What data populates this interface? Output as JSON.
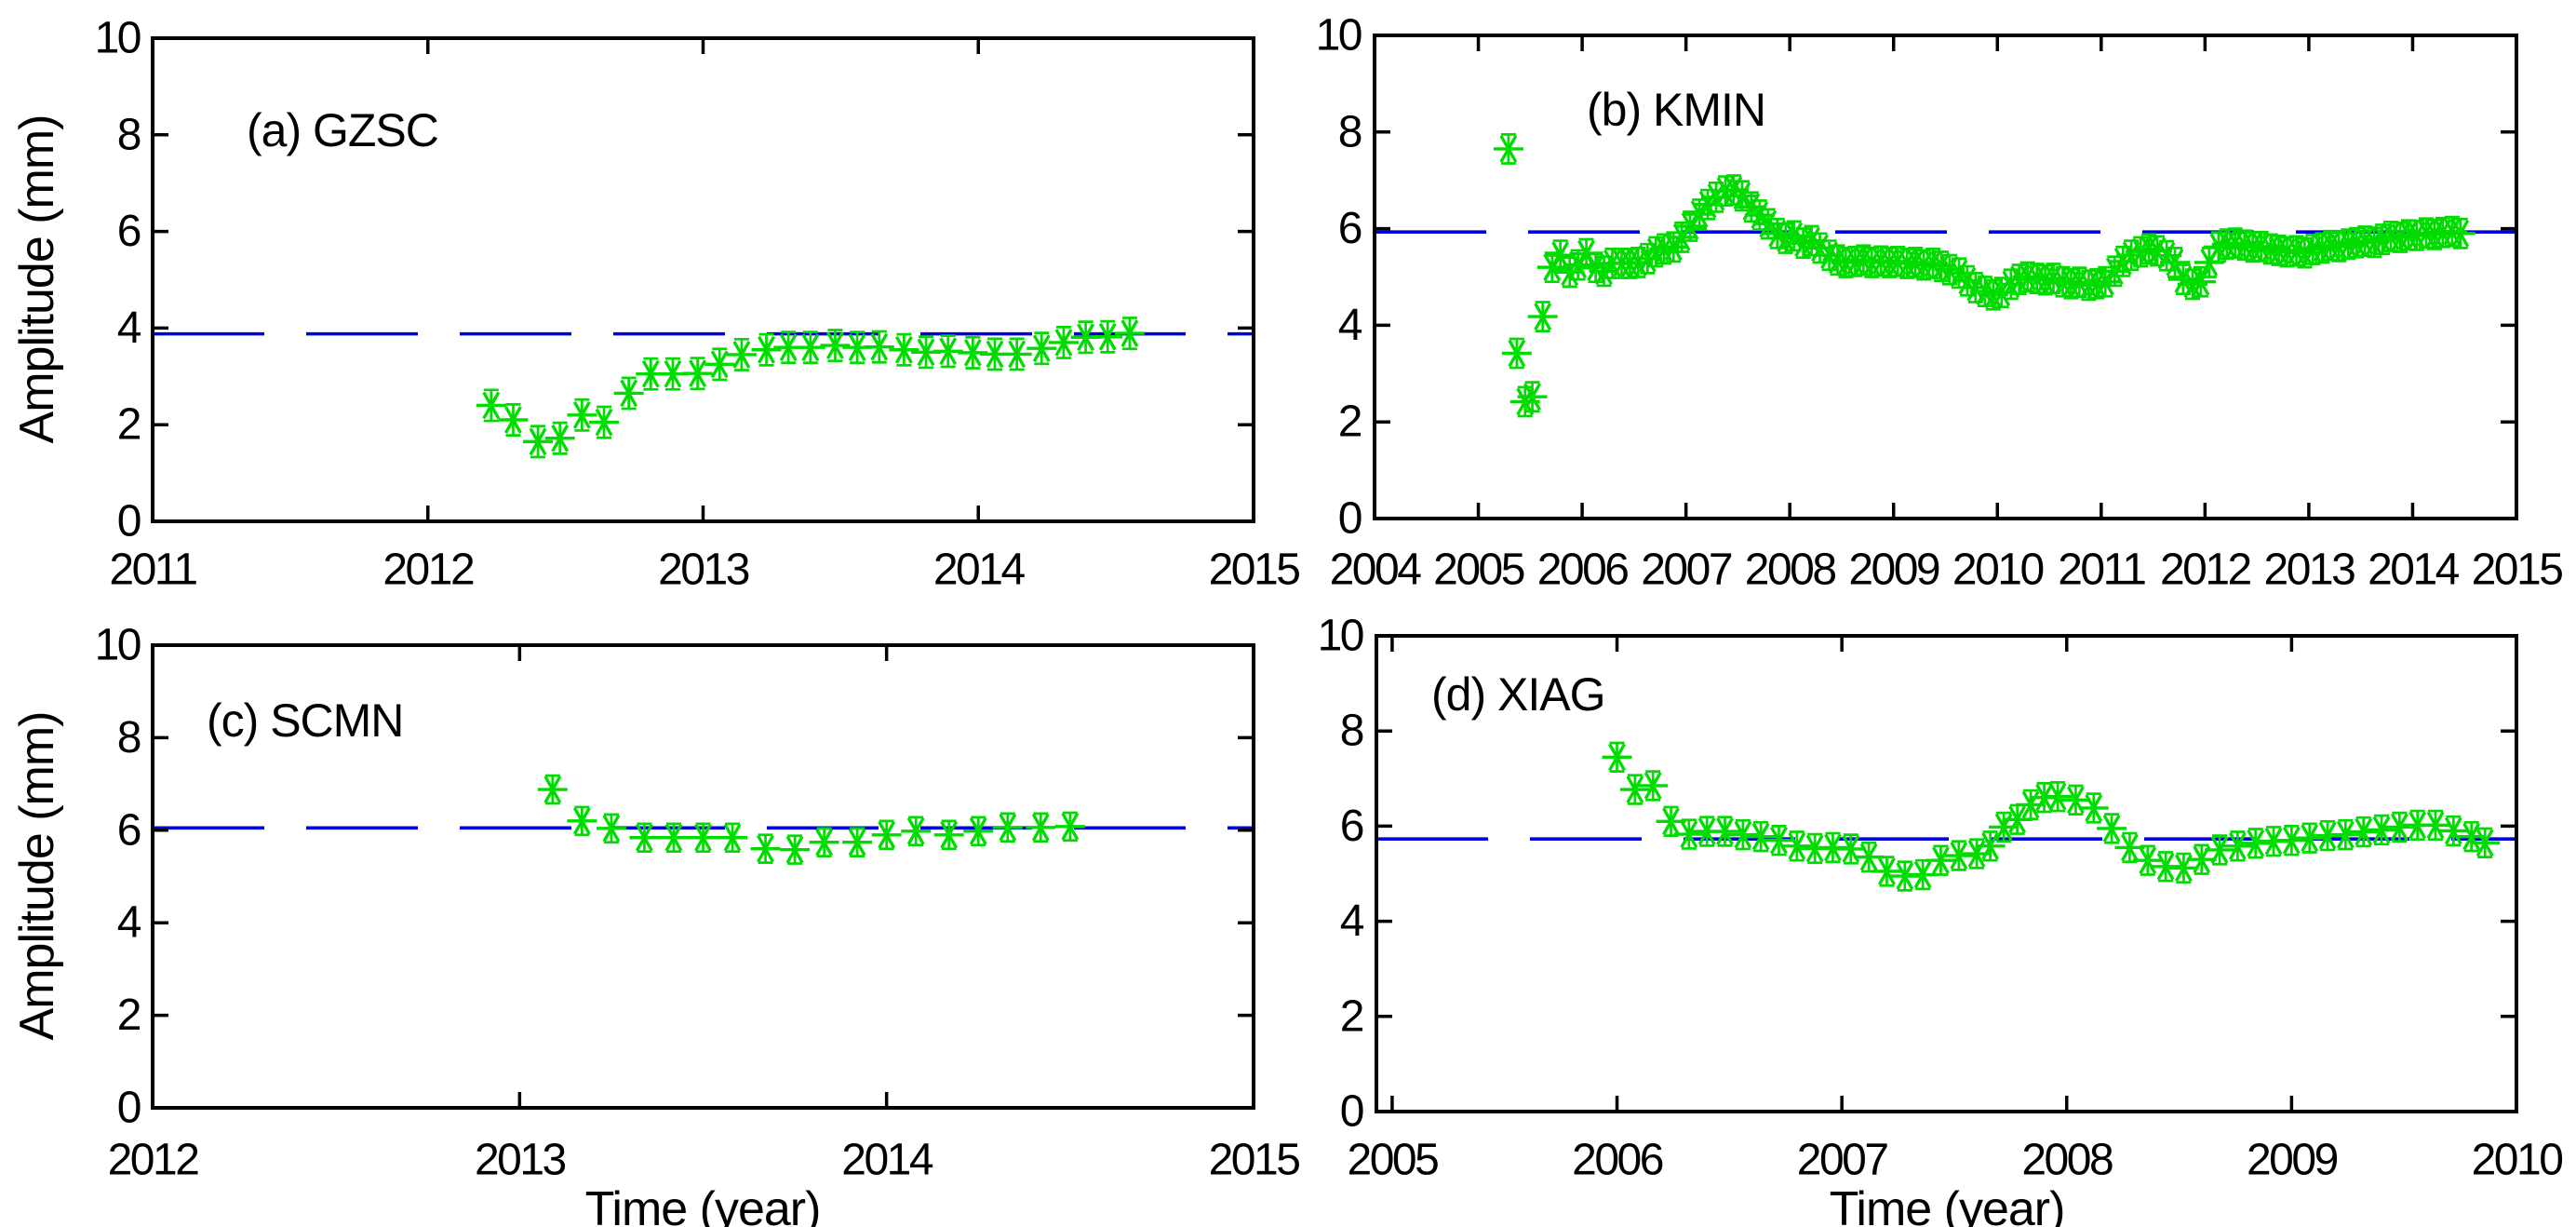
{
  "figure": {
    "bg_color": "#ffffff",
    "axis_color": "#000000",
    "marker_color": "#00dc00",
    "mean_line_color": "#0000dc",
    "ylabel": "Amplitude (mm)",
    "xlabel": "Time (year)"
  },
  "chart_data": [
    {
      "id": "a",
      "type": "scatter",
      "title": "(a) GZSC",
      "marker": "green-asterisk-with-error-bar",
      "ylabel": "Amplitude (mm)",
      "xlabel": "",
      "xlim": [
        2011,
        2015
      ],
      "ylim": [
        0,
        10
      ],
      "x_ticks": [
        2011,
        2012,
        2013,
        2014,
        2015
      ],
      "y_ticks": [
        0,
        2,
        4,
        6,
        8,
        10
      ],
      "grid": false,
      "mean_line": 3.88,
      "error_bar": 0.32,
      "points": [
        [
          2012.23,
          2.4
        ],
        [
          2012.31,
          2.1
        ],
        [
          2012.4,
          1.65
        ],
        [
          2012.48,
          1.72
        ],
        [
          2012.56,
          2.2
        ],
        [
          2012.64,
          2.05
        ],
        [
          2012.73,
          2.65
        ],
        [
          2012.81,
          3.05
        ],
        [
          2012.89,
          3.05
        ],
        [
          2012.98,
          3.06
        ],
        [
          2013.06,
          3.25
        ],
        [
          2013.14,
          3.45
        ],
        [
          2013.23,
          3.55
        ],
        [
          2013.31,
          3.6
        ],
        [
          2013.39,
          3.6
        ],
        [
          2013.48,
          3.64
        ],
        [
          2013.56,
          3.6
        ],
        [
          2013.64,
          3.61
        ],
        [
          2013.73,
          3.55
        ],
        [
          2013.81,
          3.5
        ],
        [
          2013.89,
          3.52
        ],
        [
          2013.98,
          3.49
        ],
        [
          2014.06,
          3.46
        ],
        [
          2014.14,
          3.46
        ],
        [
          2014.23,
          3.58
        ],
        [
          2014.31,
          3.7
        ],
        [
          2014.39,
          3.81
        ],
        [
          2014.47,
          3.82
        ],
        [
          2014.55,
          3.89
        ]
      ]
    },
    {
      "id": "b",
      "type": "scatter",
      "title": "(b) KMIN",
      "marker": "green-asterisk-with-error-bar",
      "ylabel": "",
      "xlabel": "",
      "xlim": [
        2004,
        2015
      ],
      "ylim": [
        0,
        10
      ],
      "x_ticks": [
        2004,
        2005,
        2006,
        2007,
        2008,
        2009,
        2010,
        2011,
        2012,
        2013,
        2014,
        2015
      ],
      "y_ticks": [
        0,
        2,
        4,
        6,
        8,
        10
      ],
      "grid": false,
      "mean_line": 5.93,
      "error_bar": 0.3,
      "points": [
        [
          2005.29,
          7.65
        ],
        [
          2005.37,
          3.42
        ],
        [
          2005.45,
          2.42
        ],
        [
          2005.52,
          2.52
        ],
        [
          2005.62,
          4.18
        ],
        [
          2005.71,
          5.2
        ],
        [
          2005.79,
          5.45
        ],
        [
          2005.88,
          5.1
        ],
        [
          2005.96,
          5.25
        ],
        [
          2006.04,
          5.48
        ],
        [
          2006.13,
          5.2
        ],
        [
          2006.21,
          5.12
        ],
        [
          2006.29,
          5.28
        ],
        [
          2006.38,
          5.28
        ],
        [
          2006.46,
          5.28
        ],
        [
          2006.54,
          5.3
        ],
        [
          2006.63,
          5.38
        ],
        [
          2006.71,
          5.52
        ],
        [
          2006.79,
          5.58
        ],
        [
          2006.88,
          5.62
        ],
        [
          2006.96,
          5.82
        ],
        [
          2007.04,
          6.05
        ],
        [
          2007.13,
          6.3
        ],
        [
          2007.21,
          6.5
        ],
        [
          2007.29,
          6.65
        ],
        [
          2007.38,
          6.78
        ],
        [
          2007.46,
          6.8
        ],
        [
          2007.54,
          6.68
        ],
        [
          2007.63,
          6.45
        ],
        [
          2007.71,
          6.28
        ],
        [
          2007.79,
          6.1
        ],
        [
          2007.88,
          5.9
        ],
        [
          2007.96,
          5.8
        ],
        [
          2008.04,
          5.85
        ],
        [
          2008.13,
          5.7
        ],
        [
          2008.21,
          5.75
        ],
        [
          2008.29,
          5.6
        ],
        [
          2008.38,
          5.45
        ],
        [
          2008.46,
          5.35
        ],
        [
          2008.54,
          5.3
        ],
        [
          2008.63,
          5.32
        ],
        [
          2008.71,
          5.35
        ],
        [
          2008.79,
          5.3
        ],
        [
          2008.88,
          5.33
        ],
        [
          2008.96,
          5.3
        ],
        [
          2009.04,
          5.32
        ],
        [
          2009.13,
          5.28
        ],
        [
          2009.21,
          5.3
        ],
        [
          2009.29,
          5.25
        ],
        [
          2009.38,
          5.28
        ],
        [
          2009.46,
          5.22
        ],
        [
          2009.54,
          5.15
        ],
        [
          2009.63,
          5.08
        ],
        [
          2009.71,
          4.92
        ],
        [
          2009.79,
          4.78
        ],
        [
          2009.88,
          4.7
        ],
        [
          2009.96,
          4.63
        ],
        [
          2010.04,
          4.68
        ],
        [
          2010.13,
          4.85
        ],
        [
          2010.21,
          4.95
        ],
        [
          2010.29,
          5.0
        ],
        [
          2010.38,
          4.97
        ],
        [
          2010.46,
          4.94
        ],
        [
          2010.54,
          4.97
        ],
        [
          2010.63,
          4.9
        ],
        [
          2010.71,
          4.86
        ],
        [
          2010.79,
          4.89
        ],
        [
          2010.88,
          4.83
        ],
        [
          2010.96,
          4.86
        ],
        [
          2011.04,
          4.9
        ],
        [
          2011.13,
          5.12
        ],
        [
          2011.21,
          5.32
        ],
        [
          2011.29,
          5.45
        ],
        [
          2011.38,
          5.52
        ],
        [
          2011.46,
          5.58
        ],
        [
          2011.54,
          5.54
        ],
        [
          2011.63,
          5.44
        ],
        [
          2011.71,
          5.3
        ],
        [
          2011.79,
          4.95
        ],
        [
          2011.88,
          4.85
        ],
        [
          2011.96,
          4.9
        ],
        [
          2012.04,
          5.3
        ],
        [
          2012.13,
          5.62
        ],
        [
          2012.21,
          5.68
        ],
        [
          2012.29,
          5.7
        ],
        [
          2012.38,
          5.66
        ],
        [
          2012.46,
          5.62
        ],
        [
          2012.54,
          5.63
        ],
        [
          2012.63,
          5.58
        ],
        [
          2012.71,
          5.55
        ],
        [
          2012.79,
          5.52
        ],
        [
          2012.88,
          5.54
        ],
        [
          2012.96,
          5.5
        ],
        [
          2013.04,
          5.57
        ],
        [
          2013.13,
          5.6
        ],
        [
          2013.21,
          5.65
        ],
        [
          2013.29,
          5.63
        ],
        [
          2013.38,
          5.68
        ],
        [
          2013.46,
          5.71
        ],
        [
          2013.54,
          5.74
        ],
        [
          2013.63,
          5.72
        ],
        [
          2013.71,
          5.78
        ],
        [
          2013.79,
          5.84
        ],
        [
          2013.88,
          5.82
        ],
        [
          2013.96,
          5.87
        ],
        [
          2014.04,
          5.86
        ],
        [
          2014.13,
          5.91
        ],
        [
          2014.21,
          5.88
        ],
        [
          2014.29,
          5.92
        ],
        [
          2014.38,
          5.94
        ],
        [
          2014.46,
          5.9
        ]
      ]
    },
    {
      "id": "c",
      "type": "scatter",
      "title": "(c) SCMN",
      "marker": "green-asterisk-with-error-bar",
      "ylabel": "Amplitude (mm)",
      "xlabel": "Time (year)",
      "xlim": [
        2012,
        2015
      ],
      "ylim": [
        0,
        10
      ],
      "x_ticks": [
        2012,
        2013,
        2014,
        2015
      ],
      "y_ticks": [
        0,
        2,
        4,
        6,
        8,
        10
      ],
      "grid": false,
      "mean_line": 6.05,
      "error_bar": 0.3,
      "points": [
        [
          2013.09,
          6.88
        ],
        [
          2013.17,
          6.2
        ],
        [
          2013.25,
          6.04
        ],
        [
          2013.34,
          5.84
        ],
        [
          2013.42,
          5.84
        ],
        [
          2013.5,
          5.84
        ],
        [
          2013.58,
          5.84
        ],
        [
          2013.67,
          5.6
        ],
        [
          2013.75,
          5.58
        ],
        [
          2013.83,
          5.74
        ],
        [
          2013.92,
          5.74
        ],
        [
          2014.0,
          5.9
        ],
        [
          2014.08,
          5.98
        ],
        [
          2014.17,
          5.9
        ],
        [
          2014.25,
          5.98
        ],
        [
          2014.33,
          6.06
        ],
        [
          2014.42,
          6.06
        ],
        [
          2014.5,
          6.08
        ]
      ]
    },
    {
      "id": "d",
      "type": "scatter",
      "title": "(d) XIAG",
      "marker": "green-asterisk-with-error-bar",
      "ylabel": "",
      "xlabel": "Time (year)",
      "xlim": [
        2004.93,
        2010
      ],
      "ylim": [
        0,
        10
      ],
      "x_ticks": [
        2005,
        2006,
        2007,
        2008,
        2009,
        2010
      ],
      "y_ticks": [
        0,
        2,
        4,
        6,
        8,
        10
      ],
      "grid": false,
      "mean_line": 5.73,
      "error_bar": 0.3,
      "points": [
        [
          2006.0,
          7.45
        ],
        [
          2006.08,
          6.77
        ],
        [
          2006.16,
          6.85
        ],
        [
          2006.24,
          6.1
        ],
        [
          2006.32,
          5.83
        ],
        [
          2006.4,
          5.89
        ],
        [
          2006.48,
          5.89
        ],
        [
          2006.56,
          5.82
        ],
        [
          2006.64,
          5.78
        ],
        [
          2006.72,
          5.7
        ],
        [
          2006.8,
          5.58
        ],
        [
          2006.88,
          5.53
        ],
        [
          2006.96,
          5.55
        ],
        [
          2007.04,
          5.52
        ],
        [
          2007.12,
          5.35
        ],
        [
          2007.2,
          5.05
        ],
        [
          2007.28,
          4.95
        ],
        [
          2007.36,
          4.98
        ],
        [
          2007.44,
          5.28
        ],
        [
          2007.52,
          5.38
        ],
        [
          2007.6,
          5.42
        ],
        [
          2007.66,
          5.58
        ],
        [
          2007.72,
          5.98
        ],
        [
          2007.78,
          6.14
        ],
        [
          2007.84,
          6.45
        ],
        [
          2007.9,
          6.6
        ],
        [
          2007.96,
          6.62
        ],
        [
          2008.04,
          6.55
        ],
        [
          2008.12,
          6.38
        ],
        [
          2008.2,
          5.95
        ],
        [
          2008.28,
          5.55
        ],
        [
          2008.36,
          5.28
        ],
        [
          2008.44,
          5.15
        ],
        [
          2008.52,
          5.12
        ],
        [
          2008.6,
          5.3
        ],
        [
          2008.68,
          5.5
        ],
        [
          2008.76,
          5.58
        ],
        [
          2008.84,
          5.64
        ],
        [
          2008.92,
          5.68
        ],
        [
          2009.0,
          5.7
        ],
        [
          2009.08,
          5.75
        ],
        [
          2009.16,
          5.8
        ],
        [
          2009.24,
          5.82
        ],
        [
          2009.32,
          5.88
        ],
        [
          2009.4,
          5.92
        ],
        [
          2009.48,
          5.98
        ],
        [
          2009.56,
          6.02
        ],
        [
          2009.64,
          6.02
        ],
        [
          2009.72,
          5.9
        ],
        [
          2009.8,
          5.78
        ],
        [
          2009.86,
          5.65
        ]
      ]
    }
  ]
}
